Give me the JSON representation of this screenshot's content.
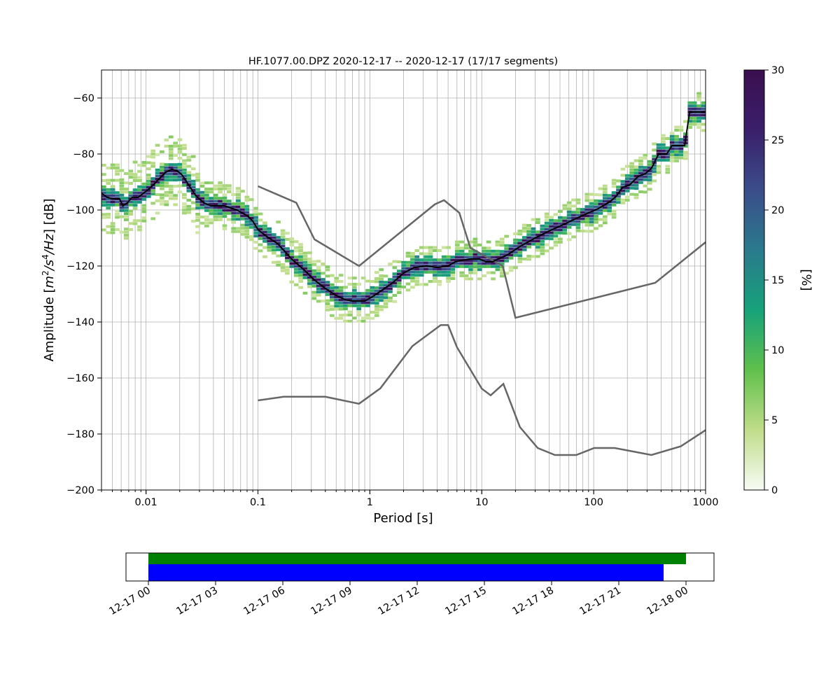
{
  "chart_data": [
    {
      "type": "heatmap",
      "title": "HF.1077.00.DPZ   2020-12-17 -- 2020-12-17  (17/17 segments)",
      "xlabel": "Period [s]",
      "ylabel_parts": {
        "prefix": "Amplitude [",
        "m": "m",
        "m_exp": "2",
        "s1": "/s",
        "s_exp": "4",
        "hz": "/Hz",
        "suffix": "] [dB]"
      },
      "x_scale": "log",
      "xlim": [
        0.004,
        1000
      ],
      "ylim": [
        -200,
        -50
      ],
      "grid": true,
      "x_ticks": [
        {
          "value": 0.01,
          "label": "0.01"
        },
        {
          "value": 0.1,
          "label": "0.1"
        },
        {
          "value": 1,
          "label": "1"
        },
        {
          "value": 10,
          "label": "10"
        },
        {
          "value": 100,
          "label": "100"
        },
        {
          "value": 1000,
          "label": "1000"
        }
      ],
      "y_ticks": [
        {
          "value": -60,
          "label": "−60"
        },
        {
          "value": -80,
          "label": "−80"
        },
        {
          "value": -100,
          "label": "−100"
        },
        {
          "value": -120,
          "label": "−120"
        },
        {
          "value": -140,
          "label": "−140"
        },
        {
          "value": -160,
          "label": "−160"
        },
        {
          "value": -180,
          "label": "−180"
        },
        {
          "value": -200,
          "label": "−200"
        }
      ],
      "colorbar": {
        "label": "[%]",
        "range": [
          0,
          30
        ],
        "ticks": [
          {
            "value": 0,
            "label": "0"
          },
          {
            "value": 5,
            "label": "5"
          },
          {
            "value": 10,
            "label": "10"
          },
          {
            "value": 15,
            "label": "15"
          },
          {
            "value": 20,
            "label": "20"
          },
          {
            "value": 25,
            "label": "25"
          },
          {
            "value": 30,
            "label": "30"
          }
        ],
        "colors": [
          "#f7fcf5",
          "#c0dd8a",
          "#60c04c",
          "#17a27a",
          "#2a7a8c",
          "#3b4d8a",
          "#3a1f6b",
          "#3b0f4f"
        ]
      },
      "series": [
        {
          "kind": "median",
          "color": "#000000",
          "points": [
            [
              0.004,
              -94
            ],
            [
              0.0045,
              -95.5
            ],
            [
              0.005,
              -96
            ],
            [
              0.0058,
              -96
            ],
            [
              0.0062,
              -98.5
            ],
            [
              0.0068,
              -97.5
            ],
            [
              0.0075,
              -95.5
            ],
            [
              0.0085,
              -95.5
            ],
            [
              0.0095,
              -94
            ],
            [
              0.011,
              -92
            ],
            [
              0.013,
              -89
            ],
            [
              0.015,
              -86.5
            ],
            [
              0.017,
              -85.5
            ],
            [
              0.019,
              -86
            ],
            [
              0.021,
              -87.5
            ],
            [
              0.024,
              -91
            ],
            [
              0.028,
              -95
            ],
            [
              0.033,
              -97.5
            ],
            [
              0.038,
              -98.5
            ],
            [
              0.05,
              -98.5
            ],
            [
              0.065,
              -100
            ],
            [
              0.08,
              -102
            ],
            [
              0.09,
              -104
            ],
            [
              0.1,
              -107
            ],
            [
              0.12,
              -109.5
            ],
            [
              0.15,
              -112
            ],
            [
              0.2,
              -117.5
            ],
            [
              0.26,
              -121.5
            ],
            [
              0.32,
              -125
            ],
            [
              0.4,
              -128
            ],
            [
              0.5,
              -130.5
            ],
            [
              0.6,
              -132
            ],
            [
              0.7,
              -132.5
            ],
            [
              0.9,
              -132.5
            ],
            [
              1.05,
              -131
            ],
            [
              1.3,
              -128.5
            ],
            [
              1.6,
              -126
            ],
            [
              2,
              -122.5
            ],
            [
              2.5,
              -120.5
            ],
            [
              3.2,
              -120
            ],
            [
              4,
              -120.5
            ],
            [
              5,
              -120
            ],
            [
              5.8,
              -118.5
            ],
            [
              6.5,
              -118
            ],
            [
              8,
              -117.5
            ],
            [
              9.5,
              -117.5
            ],
            [
              11,
              -118.5
            ],
            [
              12.5,
              -118.5
            ],
            [
              14,
              -117.5
            ],
            [
              17,
              -116
            ],
            [
              22,
              -113
            ],
            [
              30,
              -110
            ],
            [
              40,
              -107.5
            ],
            [
              55,
              -105
            ],
            [
              70,
              -103
            ],
            [
              90,
              -101
            ],
            [
              110,
              -99.5
            ],
            [
              140,
              -97
            ],
            [
              160,
              -95
            ],
            [
              180,
              -92
            ],
            [
              210,
              -91
            ],
            [
              250,
              -88
            ],
            [
              290,
              -87
            ],
            [
              330,
              -85
            ],
            [
              380,
              -80
            ],
            [
              450,
              -80
            ],
            [
              500,
              -77
            ],
            [
              650,
              -77
            ],
            [
              720,
              -65
            ],
            [
              1000,
              -65
            ]
          ]
        },
        {
          "kind": "nhnm",
          "color": "#666666",
          "points": [
            [
              0.1,
              -91.5
            ],
            [
              0.22,
              -97.4
            ],
            [
              0.32,
              -110.5
            ],
            [
              0.8,
              -120
            ],
            [
              3.8,
              -98
            ],
            [
              4.6,
              -96.5
            ],
            [
              6.3,
              -101
            ],
            [
              7.9,
              -113.5
            ],
            [
              15.4,
              -120
            ],
            [
              20,
              -138.5
            ],
            [
              354.8,
              -126
            ],
            [
              1000,
              -111.5
            ]
          ]
        },
        {
          "kind": "nlnm",
          "color": "#666666",
          "points": [
            [
              0.1,
              -168
            ],
            [
              0.17,
              -166.7
            ],
            [
              0.4,
              -166.7
            ],
            [
              0.8,
              -169.2
            ],
            [
              1.24,
              -163.7
            ],
            [
              2.4,
              -148.6
            ],
            [
              4.3,
              -141.1
            ],
            [
              5,
              -141.1
            ],
            [
              6,
              -149
            ],
            [
              10,
              -163.8
            ],
            [
              12,
              -166.2
            ],
            [
              15.6,
              -162.1
            ],
            [
              21.9,
              -177.5
            ],
            [
              31.6,
              -185
            ],
            [
              45,
              -187.5
            ],
            [
              70,
              -187.5
            ],
            [
              101,
              -185
            ],
            [
              154,
              -185
            ],
            [
              328,
              -187.5
            ],
            [
              600,
              -184.4
            ],
            [
              1000,
              -178.6
            ]
          ]
        }
      ]
    },
    {
      "type": "timeline",
      "x_range_hours": [
        -4,
        101
      ],
      "x_ticks": [
        "12-17 00",
        "12-17 03",
        "12-17 06",
        "12-17 09",
        "12-17 12",
        "12-17 15",
        "12-17 18",
        "12-17 21",
        "12-18 00"
      ],
      "bars": [
        {
          "start_hour": 0,
          "end_hour": 96,
          "color": "#008000"
        },
        {
          "start_hour": 0,
          "end_hour": 92,
          "color": "#0000ff"
        }
      ]
    }
  ]
}
